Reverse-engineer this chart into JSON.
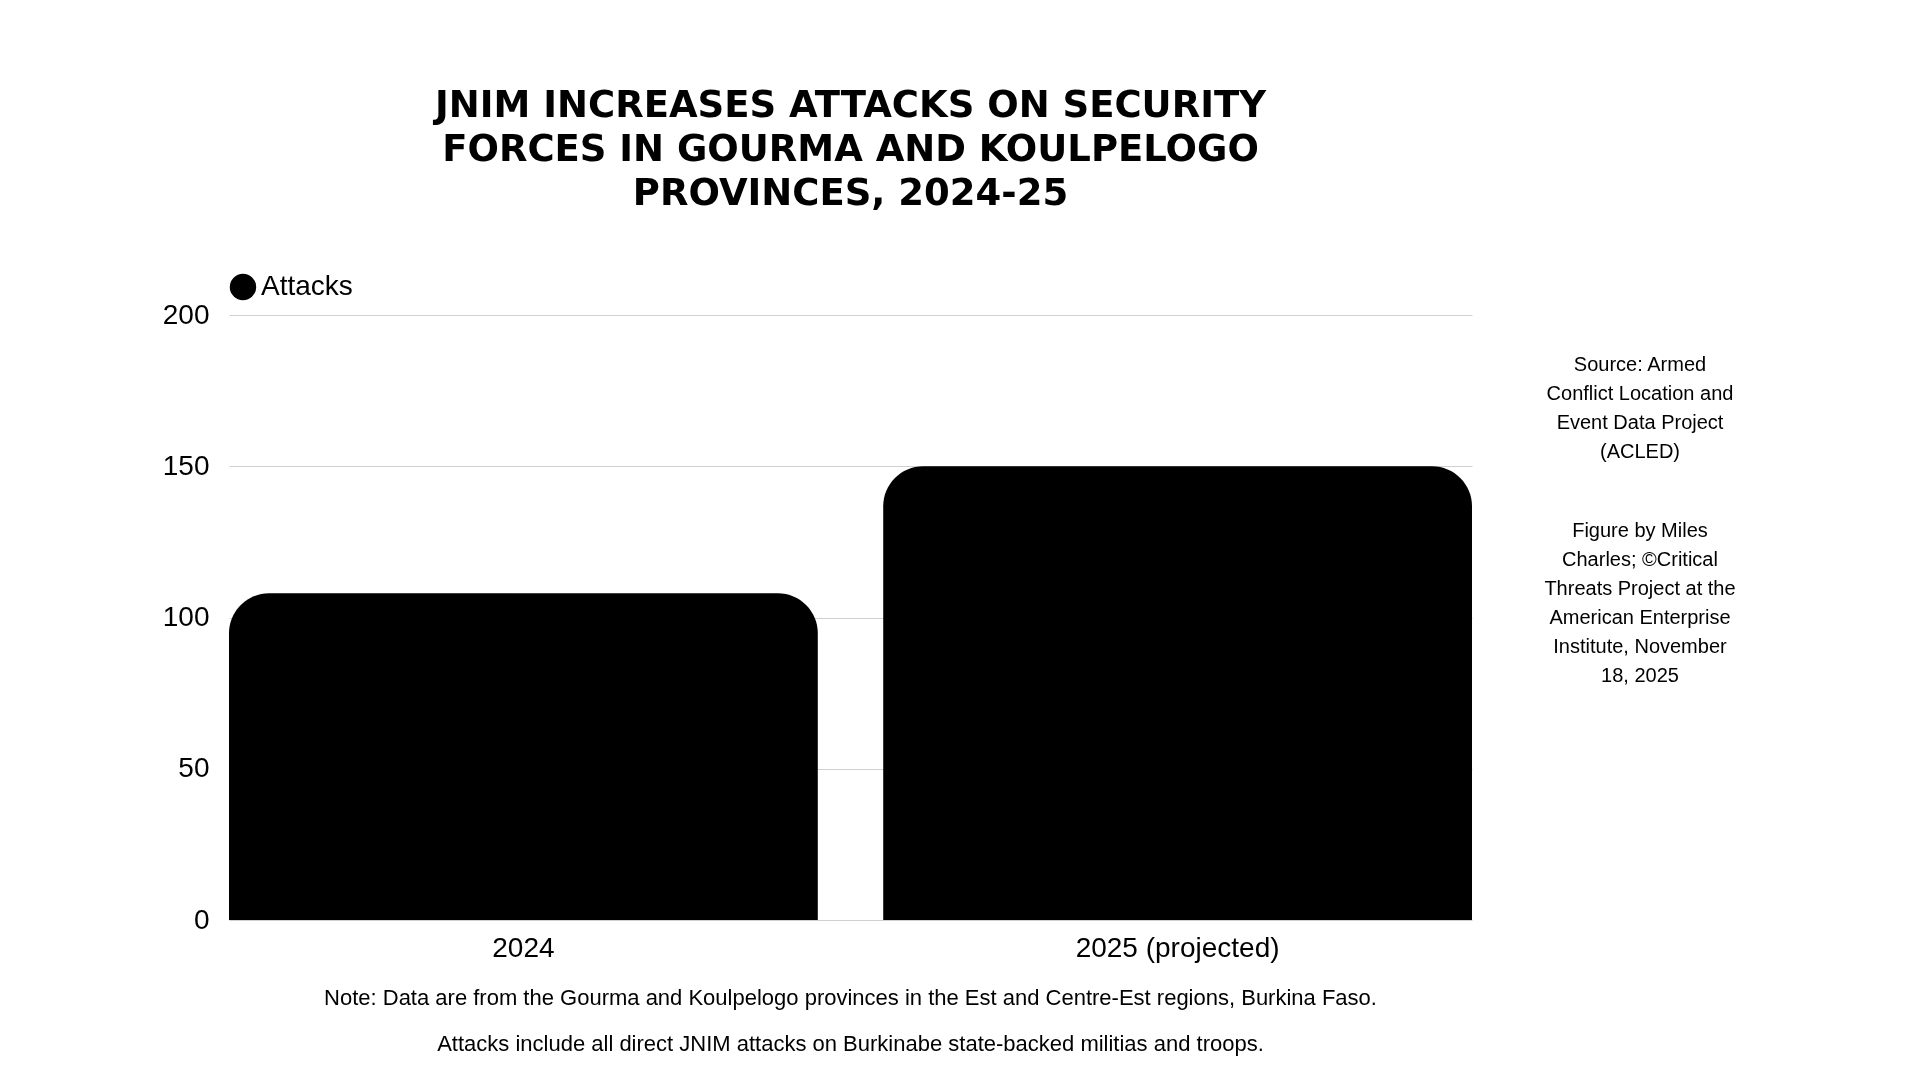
{
  "chart_data": {
    "type": "bar",
    "title": "JNIM INCREASES ATTACKS ON SECURITY FORCES IN GOURMA AND KOULPELOGO PROVINCES, 2024-25",
    "categories": [
      "2024",
      "2025 (projected)"
    ],
    "series": [
      {
        "name": "Attacks",
        "color": "#000000",
        "values": [
          108,
          150
        ]
      }
    ],
    "ylim": [
      0,
      200
    ],
    "yticks": [
      0,
      50,
      100,
      150,
      200
    ],
    "grid": "y",
    "legend": "top",
    "annotations": [
      "Note: Data are from the Gourma and Koulpelogo provinces in the Est and Centre-Est regions, Burkina Faso.",
      "Attacks include all direct JNIM attacks on Burkinabe state-backed militias and troops.",
      "Source: Armed Conflict Location and Event Data Project (ACLED)",
      "Figure by Miles Charles; ©Critical Threats Project at the American Enterprise Institute, November 18, 2025"
    ]
  }
}
